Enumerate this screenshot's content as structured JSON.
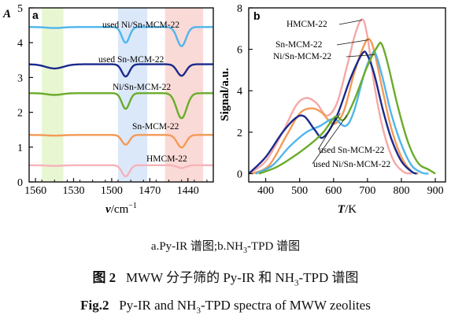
{
  "chart_data": [
    {
      "type": "line",
      "panel_label": "a",
      "y_axis_letter": "A",
      "xlabel_sym": "ν",
      "xlabel_unit": "/cm",
      "xlabel_exp": "−1",
      "ylabel": "",
      "x_reversed": true,
      "xlim": [
        1565,
        1420
      ],
      "ylim": [
        0,
        5
      ],
      "xticks": [
        1560,
        1530,
        1500,
        1470,
        1440
      ],
      "yticks": [
        0,
        1,
        2,
        3,
        4,
        5
      ],
      "grid": false,
      "shaded_bands": [
        {
          "from": 1555,
          "to": 1538,
          "color": "#e8f6d2"
        },
        {
          "from": 1495,
          "to": 1472,
          "color": "#dbe8fa"
        },
        {
          "from": 1458,
          "to": 1428,
          "color": "#fadad6"
        }
      ],
      "series": [
        {
          "name": "used Ni/Sn-MCM-22",
          "color": "#4fb5ec",
          "baseline": 4.45,
          "dips": [
            [
              1545,
              0.03,
              6
            ],
            [
              1489,
              0.45,
              3
            ],
            [
              1445,
              0.55,
              3.5
            ]
          ]
        },
        {
          "name": "used Sn-MCM-22",
          "color": "#1a2a8c",
          "baseline": 3.38,
          "dips": [
            [
              1545,
              0.12,
              7
            ],
            [
              1489,
              0.35,
              3
            ],
            [
              1445,
              0.33,
              3.5
            ]
          ]
        },
        {
          "name": "Ni/Sn-MCM-22",
          "color": "#6aac2a",
          "baseline": 2.55,
          "dips": [
            [
              1545,
              0.05,
              6
            ],
            [
              1489,
              0.45,
              3
            ],
            [
              1445,
              0.72,
              4
            ]
          ]
        },
        {
          "name": "Sn-MCM-22",
          "color": "#f39a55",
          "baseline": 1.35,
          "dips": [
            [
              1545,
              0.02,
              6
            ],
            [
              1489,
              0.28,
              3
            ],
            [
              1445,
              0.36,
              3.5
            ]
          ]
        },
        {
          "name": "HMCM-22",
          "color": "#f6b3b8",
          "baseline": 0.48,
          "dips": [
            [
              1545,
              0.02,
              6
            ],
            [
              1489,
              0.32,
              3
            ],
            [
              1445,
              0.08,
              3.5
            ]
          ]
        }
      ],
      "annotations": [
        "used Ni/Sn-MCM-22",
        "used Sn-MCM-22",
        "Ni/Sn-MCM-22",
        "Sn-MCM-22",
        "HMCM-22"
      ]
    },
    {
      "type": "line",
      "panel_label": "b",
      "ylabel": "Signal/a.u.",
      "xlabel_sym": "T",
      "xlabel_unit": "/K",
      "xlim": [
        350,
        930
      ],
      "ylim": [
        -0.4,
        8
      ],
      "xticks": [
        400,
        500,
        600,
        700,
        800,
        900
      ],
      "yticks": [
        0,
        2,
        4,
        6,
        8
      ],
      "grid": false,
      "series": [
        {
          "name": "HMCM-22",
          "color": "#f5a8a8",
          "points": [
            [
              350,
              0.0
            ],
            [
              400,
              0.6
            ],
            [
              450,
              2.0
            ],
            [
              490,
              3.3
            ],
            [
              520,
              3.65
            ],
            [
              550,
              3.4
            ],
            [
              580,
              2.8
            ],
            [
              610,
              3.4
            ],
            [
              640,
              5.2
            ],
            [
              665,
              6.8
            ],
            [
              685,
              7.45
            ],
            [
              700,
              6.6
            ],
            [
              720,
              4.3
            ],
            [
              745,
              2.2
            ],
            [
              775,
              0.7
            ],
            [
              805,
              0.1
            ],
            [
              830,
              0.0
            ]
          ]
        },
        {
          "name": "Sn-MCM-22",
          "color": "#f39a55",
          "points": [
            [
              360,
              0.0
            ],
            [
              410,
              0.4
            ],
            [
              460,
              1.8
            ],
            [
              500,
              2.9
            ],
            [
              535,
              3.15
            ],
            [
              565,
              2.95
            ],
            [
              600,
              2.4
            ],
            [
              630,
              3.0
            ],
            [
              660,
              4.8
            ],
            [
              690,
              6.2
            ],
            [
              705,
              6.5
            ],
            [
              720,
              5.9
            ],
            [
              745,
              4.0
            ],
            [
              770,
              2.2
            ],
            [
              800,
              0.8
            ],
            [
              830,
              0.1
            ],
            [
              850,
              0.0
            ]
          ]
        },
        {
          "name": "Ni/Sn-MCM-22",
          "color": "#4fb5ec",
          "points": [
            [
              370,
              0.0
            ],
            [
              420,
              0.4
            ],
            [
              470,
              1.3
            ],
            [
              520,
              2.0
            ],
            [
              560,
              2.3
            ],
            [
              600,
              2.65
            ],
            [
              635,
              2.3
            ],
            [
              660,
              3.0
            ],
            [
              690,
              4.8
            ],
            [
              715,
              5.8
            ],
            [
              725,
              5.75
            ],
            [
              745,
              4.6
            ],
            [
              770,
              2.9
            ],
            [
              800,
              1.4
            ],
            [
              830,
              0.4
            ],
            [
              860,
              0.05
            ],
            [
              880,
              0.0
            ]
          ]
        },
        {
          "name": "used Sn-MCM-22",
          "color": "#1a2a8c",
          "points": [
            [
              350,
              0.0
            ],
            [
              400,
              0.8
            ],
            [
              450,
              2.0
            ],
            [
              490,
              2.7
            ],
            [
              515,
              2.75
            ],
            [
              545,
              2.1
            ],
            [
              570,
              1.75
            ],
            [
              610,
              2.8
            ],
            [
              650,
              4.6
            ],
            [
              685,
              5.8
            ],
            [
              700,
              5.7
            ],
            [
              720,
              4.8
            ],
            [
              745,
              3.1
            ],
            [
              770,
              1.7
            ],
            [
              800,
              0.6
            ],
            [
              830,
              0.1
            ],
            [
              845,
              0.0
            ]
          ]
        },
        {
          "name": "used Ni/Sn-MCM-22",
          "color": "#6aac2a",
          "points": [
            [
              380,
              0.0
            ],
            [
              430,
              0.3
            ],
            [
              480,
              0.8
            ],
            [
              530,
              1.4
            ],
            [
              570,
              2.0
            ],
            [
              605,
              2.75
            ],
            [
              630,
              2.6
            ],
            [
              660,
              3.5
            ],
            [
              700,
              5.2
            ],
            [
              730,
              6.15
            ],
            [
              742,
              6.25
            ],
            [
              760,
              5.3
            ],
            [
              790,
              3.2
            ],
            [
              820,
              1.5
            ],
            [
              850,
              0.5
            ],
            [
              880,
              0.2
            ],
            [
              900,
              0.0
            ]
          ]
        }
      ],
      "annotations": [
        "HMCM-22",
        "Sn-MCM-22",
        "Ni/Sn-MCM-22",
        "used Sn-MCM-22",
        "used Ni/Sn-MCM-22"
      ]
    }
  ],
  "captions": {
    "sub": "a.Py-IR 谱图;b.NH",
    "sub_sub": "3",
    "sub_tail": "-TPD 谱图",
    "zh_label": "图 2",
    "zh_a": "MWW 分子筛的 Py-IR 和 NH",
    "zh_sub": "3",
    "zh_b": "-TPD 谱图",
    "en_label": "Fig.2",
    "en_a": "Py-IR and NH",
    "en_sub": "3",
    "en_b": "-TPD spectra of MWW zeolites"
  }
}
